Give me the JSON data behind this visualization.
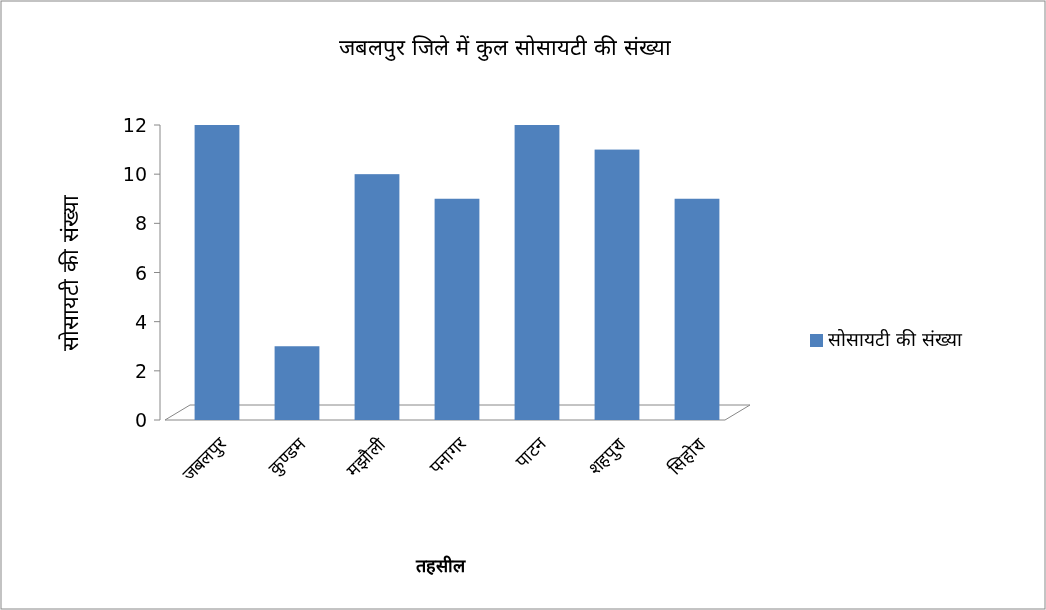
{
  "chart_data": {
    "type": "bar",
    "title": "जबलपुर जिले में कुल सोसायटी की संख्या",
    "xlabel": "तहसील",
    "ylabel": "सोसायटी की संख्या",
    "categories": [
      "जबलपुर",
      "कुण्डम",
      "मझौली",
      "पनागर",
      "पाटन",
      "शहपुरा",
      "सिहोरा"
    ],
    "series": [
      {
        "name": "सोसायटी की संख्या",
        "color": "#4f81bd",
        "values": [
          12,
          3,
          10,
          9,
          12,
          11,
          9
        ]
      }
    ],
    "ylim": [
      0,
      12
    ],
    "yticks": [
      0,
      2,
      4,
      6,
      8,
      10,
      12
    ],
    "grid": false,
    "legend": "right"
  }
}
